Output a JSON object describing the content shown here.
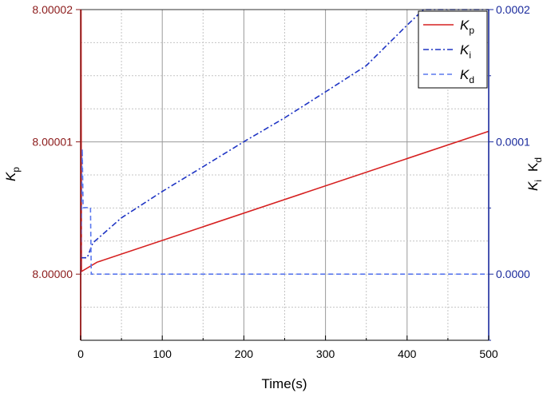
{
  "chart_data": {
    "type": "line",
    "xlabel": "Time(s)",
    "ylabel_left": {
      "main": "K",
      "sub": "p"
    },
    "ylabel_right": [
      {
        "main": "K",
        "sub": "i"
      },
      {
        "main": "K",
        "sub": "d"
      }
    ],
    "xlim": [
      0,
      500
    ],
    "x_ticks": [
      "0",
      "100",
      "200",
      "300",
      "400",
      "500"
    ],
    "ylim_left": [
      7.999995,
      8.00002
    ],
    "y_ticks_left": [
      "8.00000",
      "8.00001",
      "8.00002"
    ],
    "ylim_right": [
      -5e-05,
      0.0002
    ],
    "y_ticks_right": [
      "0.0000",
      "0.0001",
      "0.0002"
    ],
    "grid": true,
    "legend_position": "top-right",
    "colors": {
      "kp": "#d62020",
      "ki": "#1f35c4",
      "kd": "#5a78ee",
      "left_axis": "#8b1a1a",
      "right_axis": "#1a2a9c"
    },
    "series": [
      {
        "name": "K",
        "sub": "p",
        "axis": "left",
        "style": "solid",
        "x": [
          0,
          0.5,
          1,
          20,
          500
        ],
        "y": [
          7.999995,
          8.00002,
          8.0000002,
          8.0000009,
          8.0000108
        ]
      },
      {
        "name": "K",
        "sub": "i",
        "axis": "right",
        "style": "dashdot",
        "x": [
          0,
          8,
          15,
          50,
          100,
          150,
          200,
          250,
          300,
          350,
          400,
          420,
          500
        ],
        "y": [
          1.24e-05,
          1.24e-05,
          2.36e-05,
          4.26e-05,
          6.25e-05,
          8.12e-05,
          0.0001001,
          0.0001182,
          0.0001378,
          0.0001576,
          0.0001882,
          0.0002,
          0.0002
        ]
      },
      {
        "name": "K",
        "sub": "d",
        "axis": "right",
        "style": "dashed",
        "x": [
          0,
          2,
          3,
          12,
          13,
          14,
          500
        ],
        "y": [
          0.0,
          9.46e-05,
          5.02e-05,
          5.05e-05,
          0.0,
          0.0,
          0.0
        ]
      }
    ]
  }
}
